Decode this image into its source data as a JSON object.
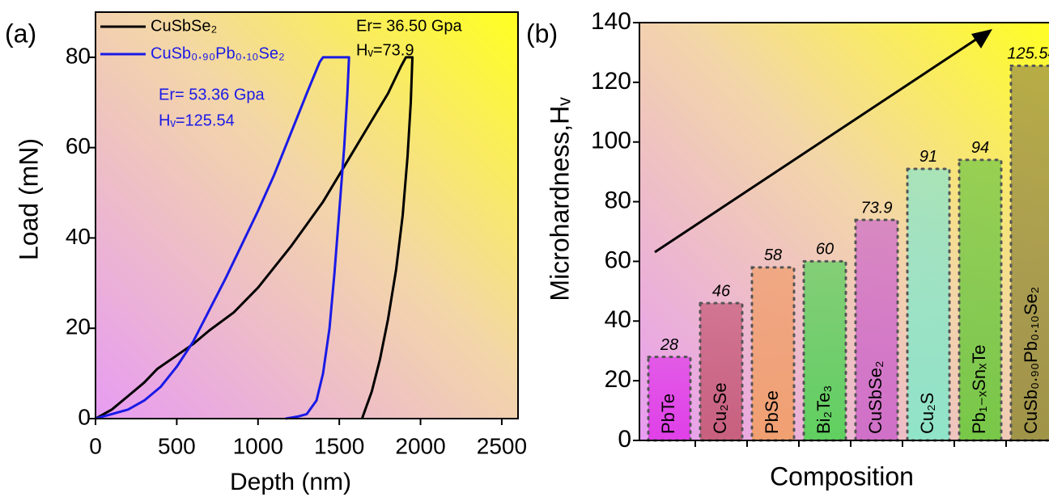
{
  "chart_data": [
    {
      "type": "line",
      "panel_label": "(a)",
      "x_label": "Depth (nm)",
      "y_label": "Load (mN)",
      "xlim": [
        0,
        2600
      ],
      "ylim": [
        0,
        90
      ],
      "xticks": [
        0,
        500,
        1000,
        1500,
        2000,
        2500
      ],
      "yticks": [
        0,
        20,
        40,
        60,
        80
      ],
      "legend": "top-left",
      "annotations": [
        {
          "text": "Er= 36.50 Gpa",
          "color": "#000000"
        },
        {
          "text": "Hᵥ=73.9",
          "color": "#000000"
        },
        {
          "text": "Er= 53.36 Gpa",
          "color": "#1a1ae6"
        },
        {
          "text": "Hᵥ=125.54",
          "color": "#1a1ae6"
        }
      ],
      "series": [
        {
          "name": "CuSbSe₂",
          "color": "#000000",
          "x": [
            0,
            100,
            200,
            300,
            380,
            500,
            600,
            700,
            850,
            1000,
            1100,
            1200,
            1300,
            1400,
            1500,
            1600,
            1700,
            1800,
            1880,
            1910,
            1950,
            1940,
            1920,
            1890,
            1850,
            1800,
            1750,
            1700,
            1660,
            1640
          ],
          "values": [
            0,
            2,
            5,
            8,
            11,
            14,
            16.5,
            19.5,
            23.5,
            29,
            33.5,
            38,
            43,
            48,
            54,
            60,
            66,
            72,
            78,
            80,
            80,
            70,
            58,
            45,
            33,
            22,
            13,
            6,
            2,
            0
          ]
        },
        {
          "name": "CuSb₀.₉₀Pb₀.₁₀Se₂",
          "color": "#1a1ae6",
          "x": [
            0,
            100,
            200,
            300,
            400,
            500,
            600,
            700,
            800,
            900,
            1000,
            1100,
            1200,
            1300,
            1380,
            1400,
            1560,
            1550,
            1530,
            1500,
            1470,
            1440,
            1400,
            1360,
            1320,
            1300,
            1250,
            1170
          ],
          "values": [
            0,
            1,
            2,
            4,
            7,
            11.5,
            17,
            24,
            31,
            38.5,
            46,
            54,
            63,
            72,
            79,
            80,
            80,
            72,
            60,
            46,
            32,
            20,
            10,
            4,
            2,
            1,
            0.5,
            0
          ]
        }
      ]
    },
    {
      "type": "bar",
      "panel_label": "(b)",
      "x_label": "Composition",
      "y_label": "Microhardness,Hᵥ",
      "ylim": [
        0,
        140
      ],
      "yticks": [
        0,
        20,
        40,
        60,
        80,
        100,
        120,
        140
      ],
      "categories": [
        "PbTe",
        "Cu₂Se",
        "PbSe",
        "Bi₂Te₃",
        "CuSbSe₂",
        "Cu₂S",
        "Pb₁₋ₓSnₓTe",
        "CuSb₀.₉₀Pb₀.₁₀Se₂"
      ],
      "values": [
        28,
        46,
        58,
        60,
        73.9,
        91,
        94,
        125.54
      ],
      "colors": [
        "#e040e8",
        "#c8607e",
        "#f0a070",
        "#60d060",
        "#d070c8",
        "#90e4c8",
        "#78c848",
        "#a09448"
      ]
    }
  ]
}
